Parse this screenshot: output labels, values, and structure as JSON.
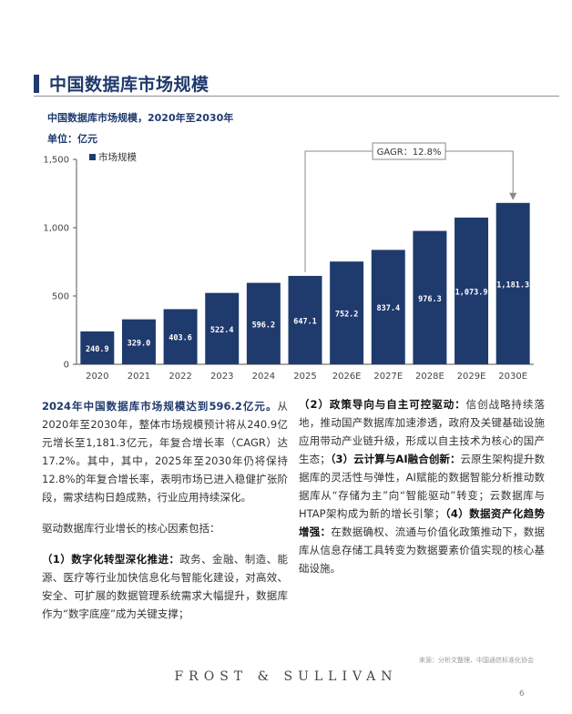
{
  "header": {
    "title": "中国数据库市场规模",
    "subtitle": "中国数据库市场规模，2020年至2030年",
    "unit": "单位：亿元"
  },
  "chart_data": {
    "type": "bar",
    "categories": [
      "2020",
      "2021",
      "2022",
      "2023",
      "2024",
      "2025",
      "2026E",
      "2027E",
      "2028E",
      "2029E",
      "2030E"
    ],
    "series": [
      {
        "name": "市场规模",
        "values": [
          240.9,
          329.0,
          403.6,
          522.4,
          596.2,
          647.1,
          752.2,
          837.4,
          976.3,
          1073.9,
          1181.3
        ]
      }
    ],
    "value_labels": [
      "240.9",
      "329.0",
      "403.6",
      "522.4",
      "596.2",
      "647.1",
      "752.2",
      "837.4",
      "976.3",
      "1,073.9",
      "1,181.3"
    ],
    "yticks": [
      "0",
      "500",
      "1,000",
      "1,500"
    ],
    "ylim": [
      0,
      1500
    ],
    "legend_position": "top-left",
    "annotation": "GAGR：12.8%",
    "bar_color": "#1f3a6d"
  },
  "body": {
    "left_heading": "2024年中国数据库市场规模达到596.2亿元。",
    "left_p1": "从2020年至2030年，整体市场规模预计将从240.9亿元增长至1,181.3亿元，年复合增长率（CAGR）达17.2%。其中，其中，2025年至2030年仍将保持12.8%的年复合增长率，表明市场已进入稳健扩张阶段，需求结构日趋成熟，行业应用持续深化。",
    "left_p2": "驱动数据库行业增长的核心因素包括：",
    "f1_title": "（1）数字化转型深化推进：",
    "f1_text": "政务、金融、制造、能源、医疗等行业加快信息化与智能化建设，对高效、安全、可扩展的数据管理系统需求大幅提升，数据库作为“数字底座”成为关键支撑；",
    "f2_title": "（2）政策导向与自主可控驱动：",
    "f2_text": "信创战略持续落地，推动国产数据库加速渗透，政府及关键基础设施应用带动产业链升级，形成以自主技术为核心的国产生态；",
    "f3_title": "（3）云计算与AI融合创新：",
    "f3_text": "云原生架构提升数据库的灵活性与弹性，AI赋能的数据智能分析推动数据库从“存储为主”向“智能驱动”转变；云数据库与HTAP架构成为新的增长引擎；",
    "f4_title": "（4）数据资产化趋势增强：",
    "f4_text": "在数据确权、流通与价值化政策推动下，数据库从信息存储工具转变为数据要素价值实现的核心基础设施。"
  },
  "footer": {
    "source": "来源：分析文整理、中国通信标准化协会",
    "brand": "FROST & SULLIVAN",
    "page": "6"
  }
}
